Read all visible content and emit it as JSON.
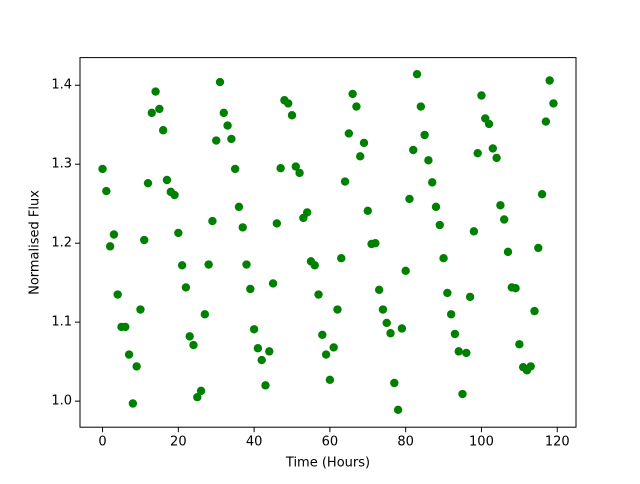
{
  "chart_data": {
    "type": "scatter",
    "x_label": "Time (Hours)",
    "y_label": "Normalised Flux",
    "color": "#008000",
    "x": [
      0,
      1,
      2,
      3,
      4,
      5,
      6,
      7,
      8,
      9,
      10,
      11,
      12,
      13,
      14,
      15,
      16,
      17,
      18,
      19,
      20,
      21,
      22,
      23,
      24,
      25,
      26,
      27,
      28,
      29,
      30,
      31,
      32,
      33,
      34,
      35,
      36,
      37,
      38,
      39,
      40,
      41,
      42,
      43,
      44,
      45,
      46,
      47,
      48,
      49,
      50,
      51,
      52,
      53,
      54,
      55,
      56,
      57,
      58,
      59,
      60,
      61,
      62,
      63,
      64,
      65,
      66,
      67,
      68,
      69,
      70,
      71,
      72,
      73,
      74,
      75,
      76,
      77,
      78,
      79,
      80,
      81,
      82,
      83,
      84,
      85,
      86,
      87,
      88,
      89,
      90,
      91,
      92,
      93,
      94,
      95,
      96,
      97,
      98,
      99,
      100,
      101,
      102,
      103,
      104,
      105,
      106,
      107,
      108,
      109,
      110,
      111,
      112,
      113,
      114,
      115,
      116,
      117,
      118,
      119
    ],
    "values": [
      1.294,
      1.266,
      1.196,
      1.211,
      1.135,
      1.094,
      1.094,
      1.059,
      0.997,
      1.044,
      1.116,
      1.204,
      1.276,
      1.365,
      1.392,
      1.37,
      1.343,
      1.28,
      1.265,
      1.261,
      1.213,
      1.172,
      1.144,
      1.082,
      1.071,
      1.005,
      1.013,
      1.11,
      1.173,
      1.228,
      1.33,
      1.404,
      1.365,
      1.349,
      1.332,
      1.294,
      1.246,
      1.22,
      1.173,
      1.142,
      1.091,
      1.067,
      1.052,
      1.02,
      1.063,
      1.149,
      1.225,
      1.295,
      1.381,
      1.377,
      1.362,
      1.297,
      1.289,
      1.232,
      1.239,
      1.177,
      1.172,
      1.135,
      1.084,
      1.059,
      1.027,
      1.068,
      1.116,
      1.181,
      1.278,
      1.339,
      1.389,
      1.373,
      1.31,
      1.327,
      1.241,
      1.199,
      1.2,
      1.141,
      1.116,
      1.099,
      1.086,
      1.023,
      0.989,
      1.092,
      1.165,
      1.256,
      1.318,
      1.414,
      1.373,
      1.337,
      1.305,
      1.277,
      1.246,
      1.223,
      1.181,
      1.137,
      1.11,
      1.085,
      1.063,
      1.009,
      1.061,
      1.132,
      1.215,
      1.314,
      1.387,
      1.358,
      1.351,
      1.32,
      1.308,
      1.248,
      1.23,
      1.189,
      1.144,
      1.143,
      1.072,
      1.043,
      1.039,
      1.044,
      1.114,
      1.194,
      1.262,
      1.354,
      1.406,
      1.377
    ],
    "xlim": [
      -5.95,
      124.95
    ],
    "ylim": [
      0.967,
      1.435
    ],
    "xticks": [
      0,
      20,
      40,
      60,
      80,
      100,
      120
    ],
    "yticks": [
      {
        "value": 1,
        "label": "1.0"
      },
      1.1,
      1.2,
      1.3,
      1.4
    ]
  }
}
